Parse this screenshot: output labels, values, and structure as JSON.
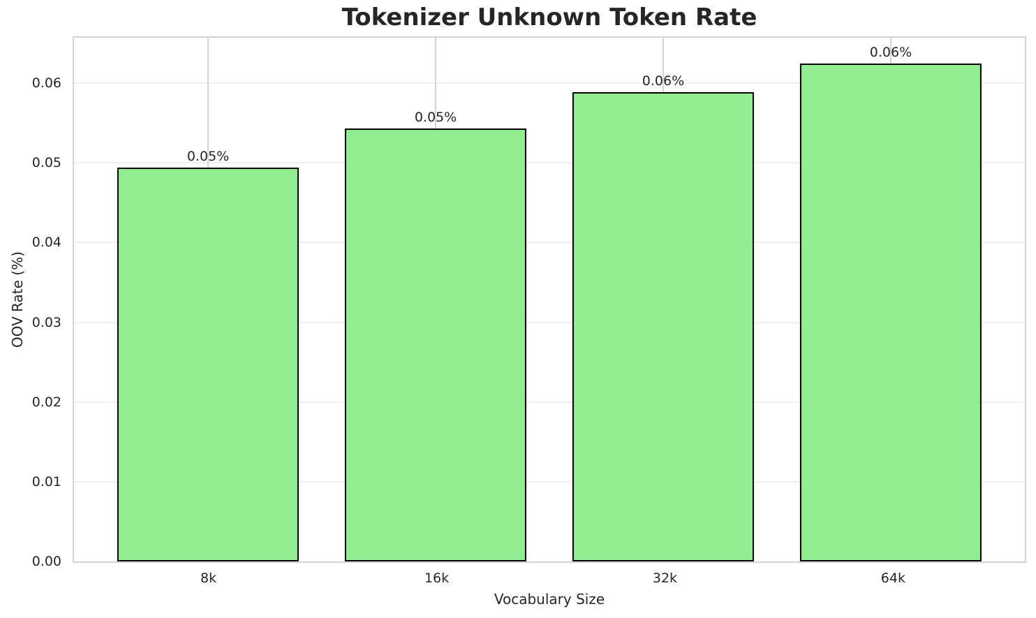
{
  "chart_data": {
    "type": "bar",
    "title": "Tokenizer Unknown Token Rate",
    "xlabel": "Vocabulary Size",
    "ylabel": "OOV Rate (%)",
    "categories": [
      "8k",
      "16k",
      "32k",
      "64k"
    ],
    "values": [
      0.0494,
      0.0543,
      0.0589,
      0.0625
    ],
    "bar_labels": [
      "0.05%",
      "0.05%",
      "0.06%",
      "0.06%"
    ],
    "yticks": [
      0.0,
      0.01,
      0.02,
      0.03,
      0.04,
      0.05,
      0.06
    ],
    "ytick_labels": [
      "0.00",
      "0.01",
      "0.02",
      "0.03",
      "0.04",
      "0.05",
      "0.06"
    ],
    "ylim": [
      0,
      0.0657
    ],
    "grid": true,
    "legend": "none",
    "layout": {
      "bar_width_frac": 0.191,
      "x_margin_frac": 0.141
    },
    "colors": {
      "bar_fill": "#90EE90",
      "bar_edge": "#000000",
      "grid_h": "#EFEFEF",
      "grid_v": "#D4D4D4",
      "spine": "#D4D4D4",
      "text": "#262626",
      "background": "#FFFFFF"
    }
  }
}
